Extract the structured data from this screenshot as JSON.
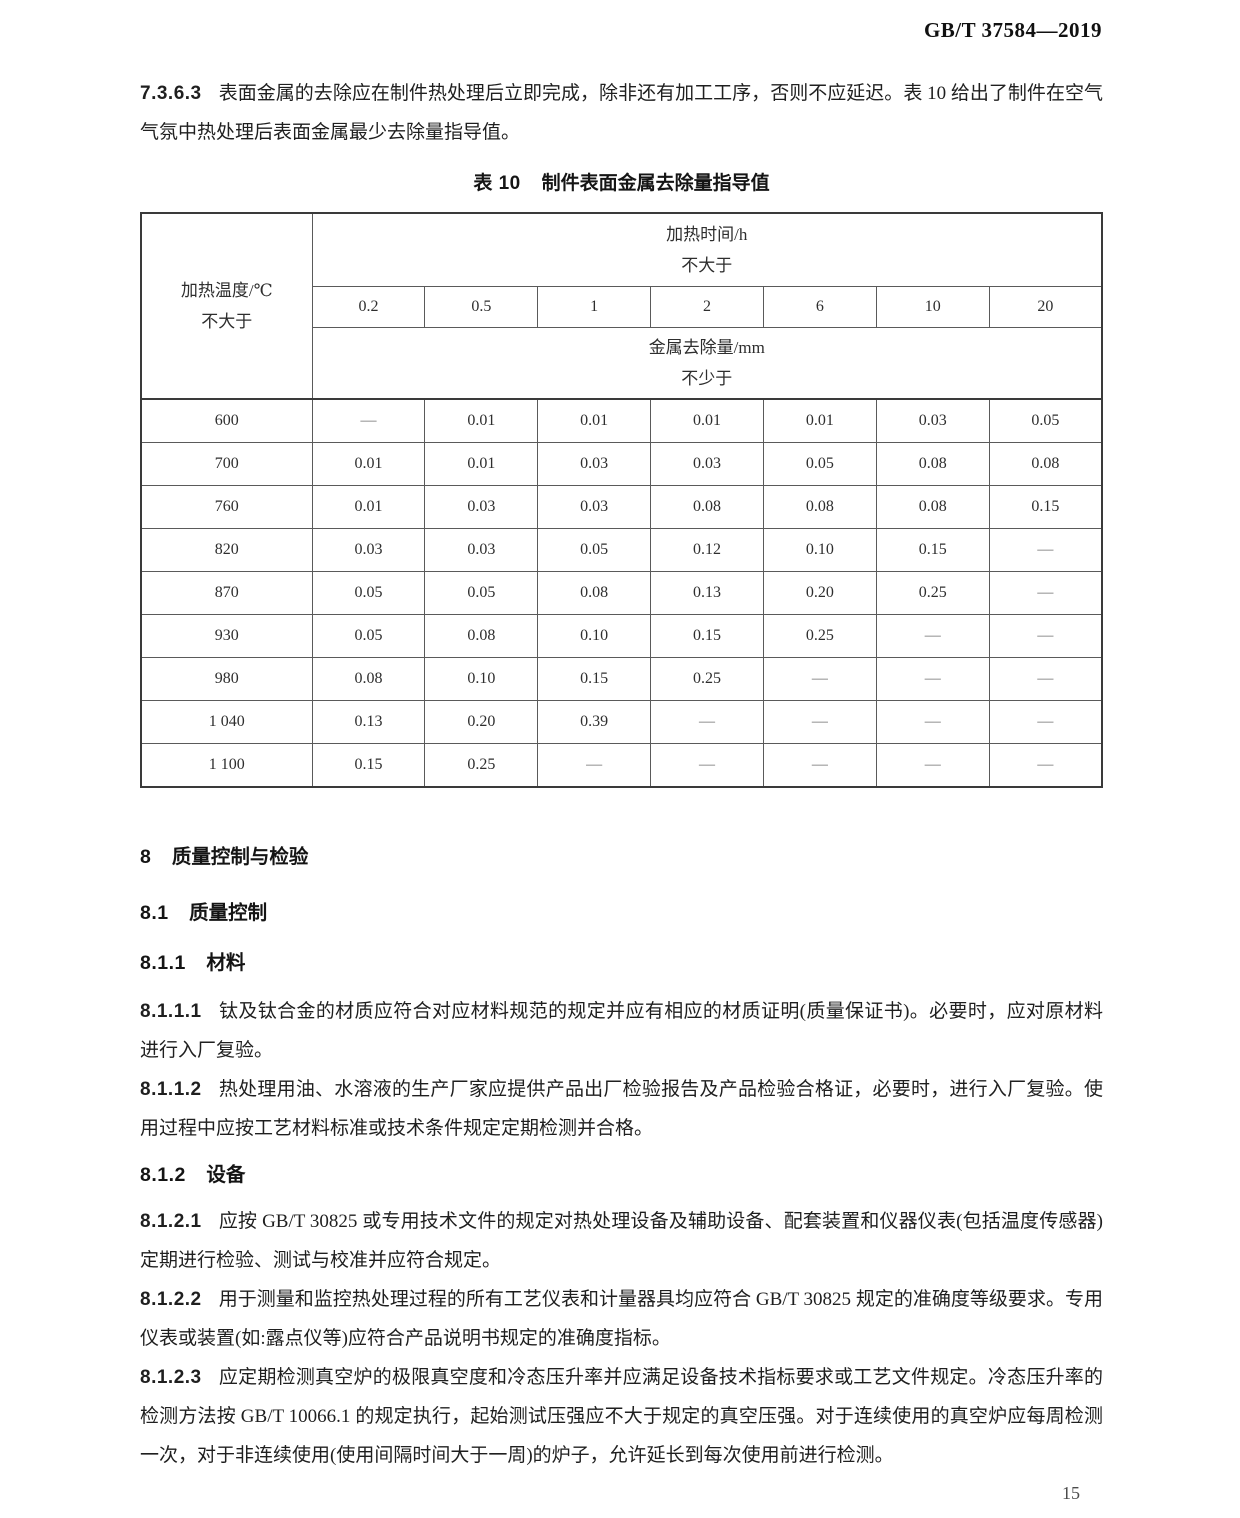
{
  "page": {
    "header_right": "GB/T 37584—2019",
    "page_number": "15"
  },
  "intro": {
    "clause": "7.3.6.3",
    "text": "表面金属的去除应在制件热处理后立即完成，除非还有加工工序，否则不应延迟。表 10 给出了制件在空气气氛中热处理后表面金属最少去除量指导值。"
  },
  "table": {
    "title_prefix": "表 10",
    "title_text": "制件表面金属去除量指导值",
    "header": {
      "row_label": "加热温度/℃",
      "row_label_sub": "不大于",
      "col_group": "加热时间/h",
      "col_group_sub": "不大于",
      "time_values": [
        "0.2",
        "0.5",
        "1",
        "2",
        "6",
        "10",
        "20"
      ],
      "value_group": "金属去除量/mm",
      "value_group_sub": "不少于"
    },
    "rows": [
      {
        "temp": "600",
        "values": [
          "—",
          "0.01",
          "0.01",
          "0.01",
          "0.01",
          "0.03",
          "0.05"
        ]
      },
      {
        "temp": "700",
        "values": [
          "0.01",
          "0.01",
          "0.03",
          "0.03",
          "0.05",
          "0.08",
          "0.08"
        ]
      },
      {
        "temp": "760",
        "values": [
          "0.01",
          "0.03",
          "0.03",
          "0.08",
          "0.08",
          "0.08",
          "0.15"
        ]
      },
      {
        "temp": "820",
        "values": [
          "0.03",
          "0.03",
          "0.05",
          "0.12",
          "0.10",
          "0.15",
          "—"
        ]
      },
      {
        "temp": "870",
        "values": [
          "0.05",
          "0.05",
          "0.08",
          "0.13",
          "0.20",
          "0.25",
          "—"
        ]
      },
      {
        "temp": "930",
        "values": [
          "0.05",
          "0.08",
          "0.10",
          "0.15",
          "0.25",
          "—",
          "—"
        ]
      },
      {
        "temp": "980",
        "values": [
          "0.08",
          "0.10",
          "0.15",
          "0.25",
          "—",
          "—",
          "—"
        ]
      },
      {
        "temp": "1 040",
        "values": [
          "0.13",
          "0.20",
          "0.39",
          "—",
          "—",
          "—",
          "—"
        ]
      },
      {
        "temp": "1 100",
        "values": [
          "0.15",
          "0.25",
          "—",
          "—",
          "—",
          "—",
          "—"
        ]
      }
    ]
  },
  "sections": {
    "h8": {
      "number": "8",
      "title": "质量控制与检验"
    },
    "h81": {
      "number": "8.1",
      "title": "质量控制"
    },
    "h811": {
      "number": "8.1.1",
      "title": "材料"
    },
    "p8111": {
      "clause": "8.1.1.1",
      "text": "钛及钛合金的材质应符合对应材料规范的规定并应有相应的材质证明(质量保证书)。必要时，应对原材料进行入厂复验。"
    },
    "p8112": {
      "clause": "8.1.1.2",
      "text": "热处理用油、水溶液的生产厂家应提供产品出厂检验报告及产品检验合格证，必要时，进行入厂复验。使用过程中应按工艺材料标准或技术条件规定定期检测并合格。"
    },
    "h812": {
      "number": "8.1.2",
      "title": "设备"
    },
    "p8121": {
      "clause": "8.1.2.1",
      "text": "应按 GB/T 30825 或专用技术文件的规定对热处理设备及辅助设备、配套装置和仪器仪表(包括温度传感器)定期进行检验、测试与校准并应符合规定。"
    },
    "p8122": {
      "clause": "8.1.2.2",
      "text": "用于测量和监控热处理过程的所有工艺仪表和计量器具均应符合 GB/T 30825 规定的准确度等级要求。专用仪表或装置(如:露点仪等)应符合产品说明书规定的准确度指标。"
    },
    "p8123": {
      "clause": "8.1.2.3",
      "text": "应定期检测真空炉的极限真空度和冷态压升率并应满足设备技术指标要求或工艺文件规定。冷态压升率的检测方法按 GB/T 10066.1 的规定执行，起始测试压强应不大于规定的真空压强。对于连续使用的真空炉应每周检测一次，对于非连续使用(使用间隔时间大于一周)的炉子，允许延长到每次使用前进行检测。"
    }
  }
}
